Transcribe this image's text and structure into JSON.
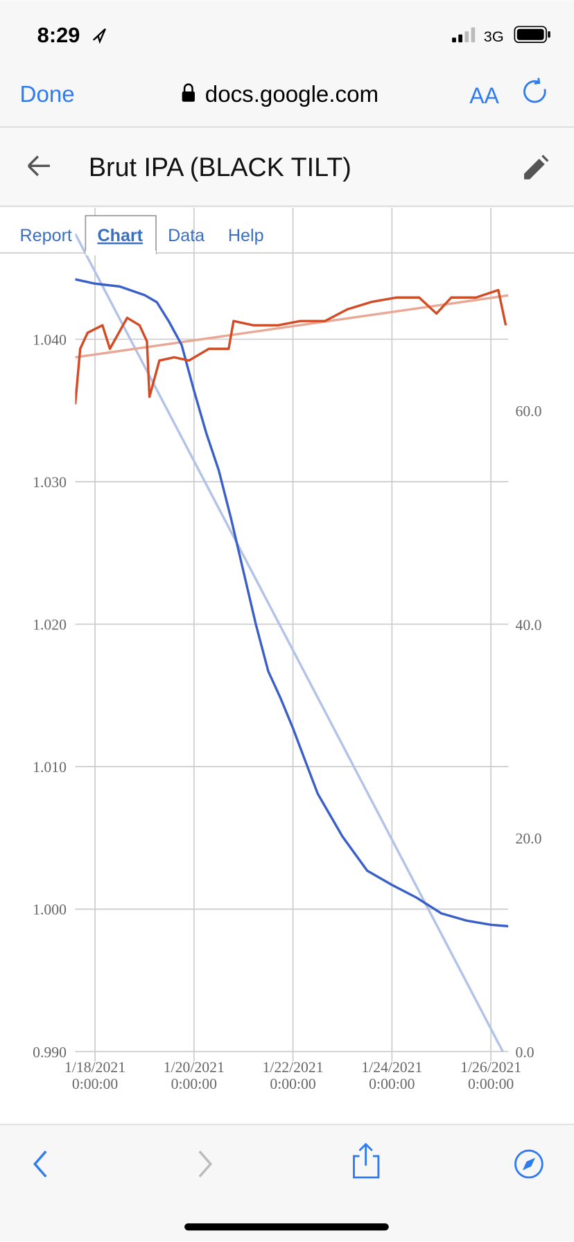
{
  "status_bar": {
    "time": "8:29",
    "network": "3G"
  },
  "browser": {
    "done": "Done",
    "url": "docs.google.com",
    "text_size": "AA"
  },
  "header": {
    "title": "Brut IPA (BLACK TILT)"
  },
  "tabs": [
    "Report",
    "Chart",
    "Data",
    "Help"
  ],
  "chart_data": {
    "type": "line",
    "grid": true,
    "xlim": [
      "2021-01-17T14:24",
      "2021-01-26T08:26"
    ],
    "xticks": [
      {
        "value": "2021-01-18T00:00",
        "label": "1/18/2021 0:00:00"
      },
      {
        "value": "2021-01-20T00:00",
        "label": "1/20/2021 0:00:00"
      },
      {
        "value": "2021-01-22T00:00",
        "label": "1/22/2021 0:00:00"
      },
      {
        "value": "2021-01-24T00:00",
        "label": "1/24/2021 0:00:00"
      },
      {
        "value": "2021-01-26T00:00",
        "label": "1/26/2021 0:00:00"
      }
    ],
    "ylim": [
      0.99,
      1.046
    ],
    "yticks": [
      {
        "value": 0.99,
        "label": "0.990"
      },
      {
        "value": 1.0,
        "label": "1.000"
      },
      {
        "value": 1.01,
        "label": "1.010"
      },
      {
        "value": 1.02,
        "label": "1.020"
      },
      {
        "value": 1.03,
        "label": "1.030"
      },
      {
        "value": 1.04,
        "label": "1.040"
      }
    ],
    "y2lim": [
      0,
      74.7
    ],
    "y2ticks": [
      {
        "value": 0,
        "label": "0.0"
      },
      {
        "value": 20,
        "label": "20.0"
      },
      {
        "value": 40,
        "label": "40.0"
      },
      {
        "value": 60,
        "label": "60.0"
      }
    ],
    "series": [
      {
        "color": "#3a5fc8",
        "x": [
          "2021-01-17T14:24",
          "2021-01-18T00:00",
          "2021-01-18T12:00",
          "2021-01-19T00:00",
          "2021-01-19T06:00",
          "2021-01-19T12:00",
          "2021-01-19T18:00",
          "2021-01-20T00:00",
          "2021-01-20T06:00",
          "2021-01-20T12:00",
          "2021-01-20T18:00",
          "2021-01-21T00:00",
          "2021-01-21T06:00",
          "2021-01-21T12:00",
          "2021-01-21T18:00",
          "2021-01-22T00:00",
          "2021-01-22T06:00",
          "2021-01-22T12:00",
          "2021-01-22T18:00",
          "2021-01-23T00:00",
          "2021-01-23T12:00",
          "2021-01-24T00:00",
          "2021-01-24T12:00",
          "2021-01-25T00:00",
          "2021-01-25T12:00",
          "2021-01-26T00:00",
          "2021-01-26T08:24"
        ],
        "values": [
          1.0442,
          1.0439,
          1.0437,
          1.0431,
          1.0426,
          1.0412,
          1.0396,
          1.0364,
          1.0334,
          1.0308,
          1.0274,
          1.0237,
          1.02,
          1.0167,
          1.0148,
          1.0127,
          1.0104,
          1.0081,
          1.0066,
          1.0051,
          1.0027,
          1.0017,
          1.0008,
          0.9997,
          0.9992,
          0.9989,
          0.9988
        ]
      },
      {
        "color": "#d24b24",
        "axis": "y2",
        "x": [
          "2021-01-17T14:24",
          "2021-01-17T16:48",
          "2021-01-17T20:24",
          "2021-01-18T03:36",
          "2021-01-18T07:12",
          "2021-01-18T15:36",
          "2021-01-18T21:36",
          "2021-01-19T01:12",
          "2021-01-19T02:24",
          "2021-01-19T07:12",
          "2021-01-19T14:24",
          "2021-01-19T21:36",
          "2021-01-20T07:12",
          "2021-01-20T16:48",
          "2021-01-20T19:12",
          "2021-01-21T04:48",
          "2021-01-21T16:48",
          "2021-01-22T03:36",
          "2021-01-22T15:36",
          "2021-01-23T02:24",
          "2021-01-23T14:24",
          "2021-01-24T02:24",
          "2021-01-24T13:12",
          "2021-01-24T21:36",
          "2021-01-25T04:48",
          "2021-01-25T16:48",
          "2021-01-26T03:36",
          "2021-01-26T07:12"
        ],
        "values": [
          60.6,
          65.8,
          67.3,
          68.0,
          65.8,
          68.7,
          68.0,
          66.5,
          61.3,
          64.7,
          65.0,
          64.7,
          65.8,
          65.8,
          68.4,
          68.0,
          68.0,
          68.4,
          68.4,
          69.5,
          70.2,
          70.6,
          70.6,
          69.1,
          70.6,
          70.6,
          71.3,
          68.0
        ]
      }
    ],
    "trendlines": [
      {
        "color": "#b3c3e8",
        "x": [
          "2021-01-17T14:24",
          "2021-01-26T05:46"
        ],
        "values": [
          1.0474,
          0.99
        ]
      },
      {
        "color": "#e8a895",
        "axis": "y2",
        "x": [
          "2021-01-17T14:24",
          "2021-01-26T08:26"
        ],
        "values": [
          65.0,
          70.8
        ]
      }
    ]
  }
}
